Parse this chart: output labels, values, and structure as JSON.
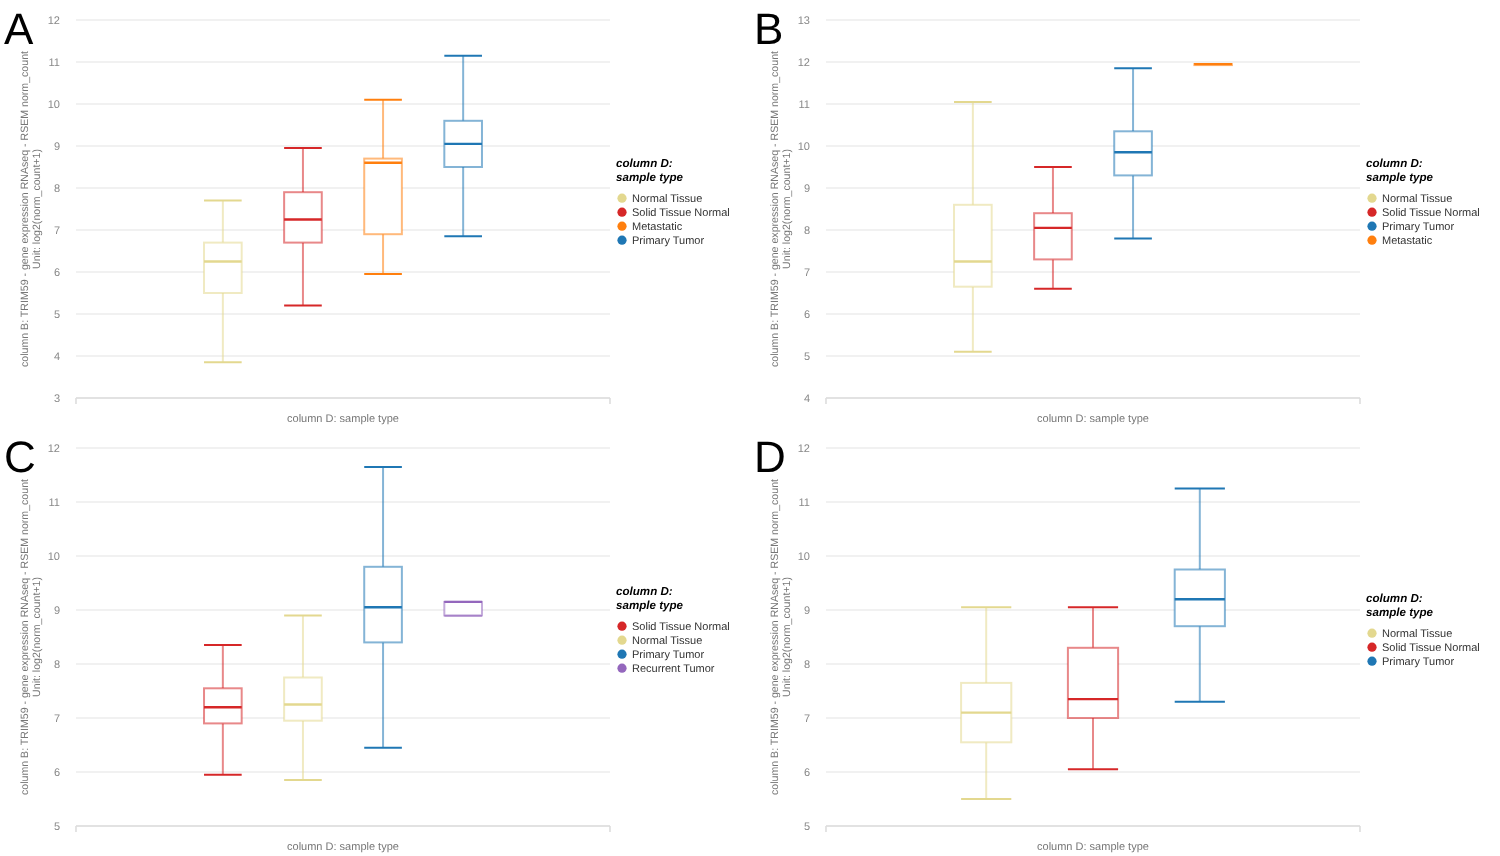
{
  "chart_data": [
    {
      "type": "box",
      "title": "A",
      "xlabel": "column D: sample type",
      "ylabel": "column B: TRIM59 - gene expression RNAseq - RSEM norm_count\nUnit: log2(norm_count+1)",
      "legend_title": "column D:\nsample type",
      "legend": "right",
      "grid": "y",
      "categories": [
        null
      ],
      "ylim": [
        3,
        12
      ],
      "yticks": [
        3,
        4,
        5,
        6,
        7,
        8,
        9,
        10,
        11,
        12
      ],
      "series": [
        {
          "name": "Normal Tissue",
          "color": "#e3d88f",
          "boxes": [
            {
              "low": 3.85,
              "q1": 5.5,
              "median": 6.25,
              "q3": 6.7,
              "high": 7.7
            }
          ]
        },
        {
          "name": "Solid Tissue Normal",
          "color": "#d62728",
          "boxes": [
            {
              "low": 5.2,
              "q1": 6.7,
              "median": 7.25,
              "q3": 7.9,
              "high": 8.95
            }
          ]
        },
        {
          "name": "Metastatic",
          "color": "#ff7f0e",
          "boxes": [
            {
              "low": 5.95,
              "q1": 6.9,
              "median": 8.6,
              "q3": 8.7,
              "high": 10.1
            }
          ]
        },
        {
          "name": "Primary Tumor",
          "color": "#1f77b4",
          "boxes": [
            {
              "low": 6.85,
              "q1": 8.5,
              "median": 9.05,
              "q3": 9.6,
              "high": 11.15
            }
          ]
        }
      ]
    },
    {
      "type": "box",
      "title": "B",
      "xlabel": "column D: sample type",
      "ylabel": "column B: TRIM59 - gene expression RNAseq - RSEM norm_count\nUnit: log2(norm_count+1)",
      "legend_title": "column D:\nsample type",
      "legend": "right",
      "grid": "y",
      "categories": [
        null
      ],
      "ylim": [
        4,
        13
      ],
      "yticks": [
        4,
        5,
        6,
        7,
        8,
        9,
        10,
        11,
        12,
        13
      ],
      "series": [
        {
          "name": "Normal Tissue",
          "color": "#e3d88f",
          "boxes": [
            {
              "low": 5.1,
              "q1": 6.65,
              "median": 7.25,
              "q3": 8.6,
              "high": 11.05
            }
          ]
        },
        {
          "name": "Solid Tissue Normal",
          "color": "#d62728",
          "boxes": [
            {
              "low": 6.6,
              "q1": 7.3,
              "median": 8.05,
              "q3": 8.4,
              "high": 9.5
            }
          ]
        },
        {
          "name": "Primary Tumor",
          "color": "#1f77b4",
          "boxes": [
            {
              "low": 7.8,
              "q1": 9.3,
              "median": 9.85,
              "q3": 10.35,
              "high": 11.85
            }
          ]
        },
        {
          "name": "Metastatic",
          "color": "#ff7f0e",
          "boxes": [
            {
              "low": 11.95,
              "q1": 11.95,
              "median": 11.95,
              "q3": 11.95,
              "high": 11.95
            }
          ]
        }
      ]
    },
    {
      "type": "box",
      "title": "C",
      "xlabel": "column D: sample type",
      "ylabel": "column B: TRIM59 - gene expression RNAseq - RSEM norm_count\nUnit: log2(norm_count+1)",
      "legend_title": "column D:\nsample type",
      "legend": "right",
      "grid": "y",
      "categories": [
        null
      ],
      "ylim": [
        5,
        12
      ],
      "yticks": [
        5,
        6,
        7,
        8,
        9,
        10,
        11,
        12
      ],
      "series": [
        {
          "name": "Solid Tissue Normal",
          "color": "#d62728",
          "boxes": [
            {
              "low": 5.95,
              "q1": 6.9,
              "median": 7.2,
              "q3": 7.55,
              "high": 8.35
            }
          ]
        },
        {
          "name": "Normal Tissue",
          "color": "#e3d88f",
          "boxes": [
            {
              "low": 5.85,
              "q1": 6.95,
              "median": 7.25,
              "q3": 7.75,
              "high": 8.9
            }
          ]
        },
        {
          "name": "Primary Tumor",
          "color": "#1f77b4",
          "boxes": [
            {
              "low": 6.45,
              "q1": 8.4,
              "median": 9.05,
              "q3": 9.8,
              "high": 11.65
            }
          ]
        },
        {
          "name": "Recurrent Tumor",
          "color": "#9467bd",
          "boxes": [
            {
              "low": 8.9,
              "q1": 8.9,
              "median": 9.15,
              "q3": 9.15,
              "high": 9.15
            }
          ]
        }
      ]
    },
    {
      "type": "box",
      "title": "D",
      "xlabel": "column D: sample type",
      "ylabel": "column B: TRIM59 - gene expression RNAseq - RSEM norm_count\nUnit: log2(norm_count+1)",
      "legend_title": "column D:\nsample type",
      "legend": "right",
      "grid": "y",
      "categories": [
        null
      ],
      "ylim": [
        5,
        12
      ],
      "yticks": [
        5,
        6,
        7,
        8,
        9,
        10,
        11,
        12
      ],
      "series": [
        {
          "name": "Normal Tissue",
          "color": "#e3d88f",
          "boxes": [
            {
              "low": 5.5,
              "q1": 6.55,
              "median": 7.1,
              "q3": 7.65,
              "high": 9.05
            }
          ]
        },
        {
          "name": "Solid Tissue Normal",
          "color": "#d62728",
          "boxes": [
            {
              "low": 6.05,
              "q1": 7.0,
              "median": 7.35,
              "q3": 8.3,
              "high": 9.05
            }
          ]
        },
        {
          "name": "Primary Tumor",
          "color": "#1f77b4",
          "boxes": [
            {
              "low": 7.3,
              "q1": 8.7,
              "median": 9.2,
              "q3": 9.75,
              "high": 11.25
            }
          ]
        }
      ]
    }
  ]
}
